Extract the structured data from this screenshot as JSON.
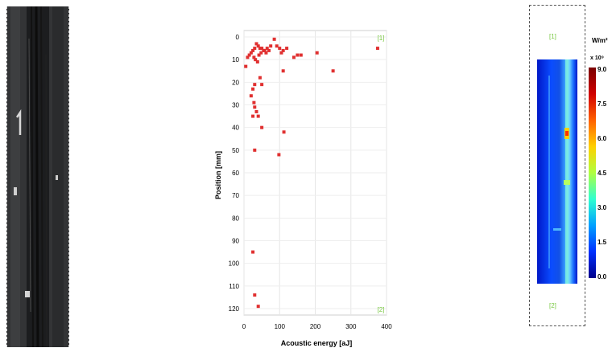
{
  "chart_data": {
    "type": "scatter",
    "xlabel": "Acoustic energy [aJ]",
    "ylabel": "Position [mm]",
    "xlim": [
      0,
      400
    ],
    "ylim": [
      0,
      120
    ],
    "y_inverted": true,
    "x_ticks": [
      "0",
      "100",
      "200",
      "300",
      "400"
    ],
    "y_ticks": [
      "0",
      "10",
      "20",
      "30",
      "40",
      "50",
      "60",
      "70",
      "80",
      "90",
      "100",
      "110",
      "120"
    ],
    "annotations": [
      "[1]",
      "[2]"
    ],
    "marker_color": "#e03030",
    "points": [
      [
        375,
        5
      ],
      [
        250,
        15
      ],
      [
        205,
        7
      ],
      [
        160,
        8
      ],
      [
        150,
        8
      ],
      [
        140,
        9
      ],
      [
        120,
        5
      ],
      [
        110,
        6
      ],
      [
        105,
        7
      ],
      [
        100,
        5
      ],
      [
        92,
        4
      ],
      [
        85,
        1
      ],
      [
        75,
        4
      ],
      [
        70,
        6
      ],
      [
        62,
        7
      ],
      [
        55,
        6
      ],
      [
        50,
        5
      ],
      [
        45,
        5
      ],
      [
        40,
        4
      ],
      [
        35,
        3
      ],
      [
        30,
        5
      ],
      [
        25,
        6
      ],
      [
        20,
        7
      ],
      [
        15,
        8
      ],
      [
        10,
        9
      ],
      [
        5,
        13
      ],
      [
        28,
        9
      ],
      [
        32,
        10
      ],
      [
        38,
        11
      ],
      [
        42,
        8
      ],
      [
        48,
        7
      ],
      [
        58,
        6
      ],
      [
        65,
        5
      ],
      [
        110,
        15
      ],
      [
        45,
        18
      ],
      [
        50,
        21
      ],
      [
        30,
        21
      ],
      [
        25,
        23
      ],
      [
        20,
        26
      ],
      [
        28,
        29
      ],
      [
        30,
        31
      ],
      [
        35,
        33
      ],
      [
        40,
        35
      ],
      [
        25,
        35
      ],
      [
        50,
        40
      ],
      [
        112,
        42
      ],
      [
        30,
        50
      ],
      [
        98,
        52
      ],
      [
        25,
        95
      ],
      [
        30,
        114
      ],
      [
        40,
        119
      ]
    ]
  },
  "heatmap": {
    "top_label": "[1]",
    "bottom_label": "[2]",
    "unit": "W/m²",
    "exponent": "x 10⁹",
    "scale_ticks": [
      "9.0",
      "7.5",
      "6.0",
      "4.5",
      "3.0",
      "1.5",
      "0.0"
    ]
  }
}
